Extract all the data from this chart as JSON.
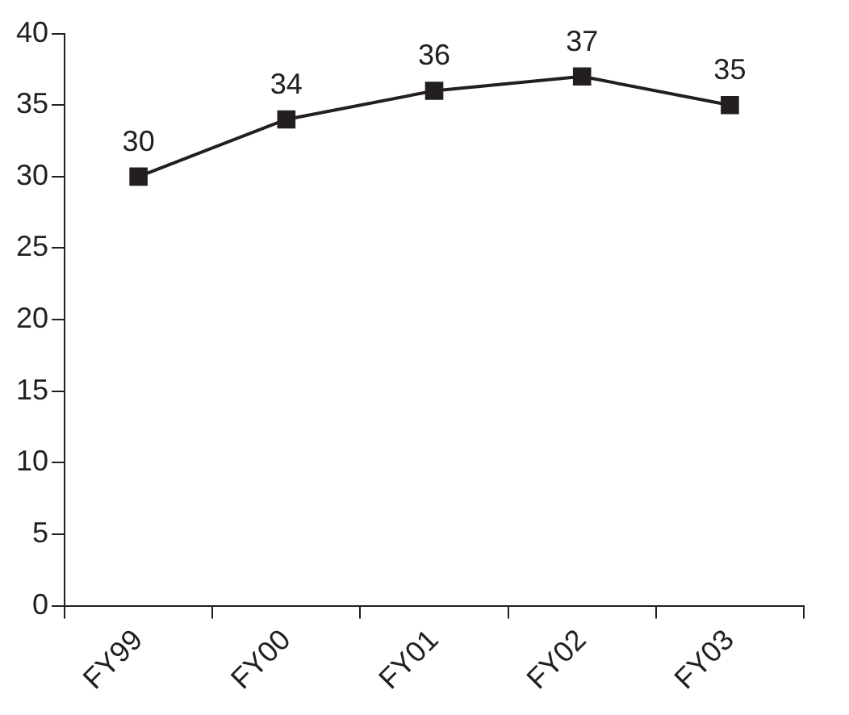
{
  "chart_data": {
    "type": "line",
    "categories": [
      "FY99",
      "FY00",
      "FY01",
      "FY02",
      "FY03"
    ],
    "values": [
      30,
      34,
      36,
      37,
      35
    ],
    "color": "#231f20",
    "ylim": [
      0,
      40
    ],
    "yticks": [
      0,
      5,
      10,
      15,
      20,
      25,
      30,
      35,
      40
    ],
    "grid": false,
    "legend": false,
    "marker": "square",
    "line_style": "solid",
    "data_labels": true
  }
}
